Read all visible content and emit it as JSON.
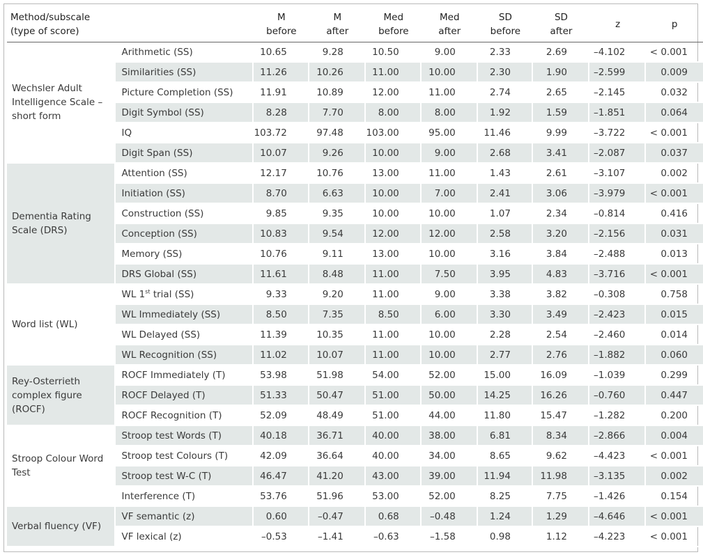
{
  "table": {
    "headers": [
      "Method/subscale\n(type of score)",
      "",
      "M\nbefore",
      "M\nafter",
      "Med\nbefore",
      "Med\nafter",
      "SD\nbefore",
      "SD\nafter",
      "z",
      "p"
    ],
    "groups": [
      {
        "name": "Wechsler Adult Intelligence Scale – short form",
        "shaded": false,
        "rows": [
          {
            "label": "Arithmetic (SS)",
            "values": [
              "10.65",
              "9.28",
              "10.50",
              "9.00",
              "2.33",
              "2.69",
              "–4.102",
              "< 0.001"
            ]
          },
          {
            "label": "Similarities (SS)",
            "values": [
              "11.26",
              "10.26",
              "11.00",
              "10.00",
              "2.30",
              "1.90",
              "–2.599",
              "0.009"
            ]
          },
          {
            "label": "Picture Completion (SS)",
            "values": [
              "11.91",
              "10.89",
              "12.00",
              "11.00",
              "2.74",
              "2.65",
              "–2.145",
              "0.032"
            ]
          },
          {
            "label": "Digit Symbol (SS)",
            "values": [
              "8.28",
              "7.70",
              "8.00",
              "8.00",
              "1.92",
              "1.59",
              "–1.851",
              "0.064"
            ]
          },
          {
            "label": "IQ",
            "values": [
              "103.72",
              "97.48",
              "103.00",
              "95.00",
              "11.46",
              "9.99",
              "–3.722",
              "< 0.001"
            ]
          },
          {
            "label": "Digit Span (SS)",
            "values": [
              "10.07",
              "9.26",
              "10.00",
              "9.00",
              "2.68",
              "3.41",
              "–2.087",
              "0.037"
            ]
          }
        ]
      },
      {
        "name": "Dementia Rating Scale (DRS)",
        "shaded": true,
        "rows": [
          {
            "label": "Attention (SS)",
            "values": [
              "12.17",
              "10.76",
              "13.00",
              "11.00",
              "1.43",
              "2.61",
              "–3.107",
              "0.002"
            ]
          },
          {
            "label": "Initiation (SS)",
            "values": [
              "8.70",
              "6.63",
              "10.00",
              "7.00",
              "2.41",
              "3.06",
              "–3.979",
              "< 0.001"
            ]
          },
          {
            "label": "Construction (SS)",
            "values": [
              "9.85",
              "9.35",
              "10.00",
              "10.00",
              "1.07",
              "2.34",
              "–0.814",
              "0.416"
            ]
          },
          {
            "label": "Conception (SS)",
            "values": [
              "10.83",
              "9.54",
              "12.00",
              "12.00",
              "2.58",
              "3.20",
              "–2.156",
              "0.031"
            ]
          },
          {
            "label": "Memory (SS)",
            "values": [
              "10.76",
              "9.11",
              "13.00",
              "10.00",
              "3.16",
              "3.84",
              "–2.488",
              "0.013"
            ]
          },
          {
            "label": "DRS Global (SS)",
            "values": [
              "11.61",
              "8.48",
              "11.00",
              "7.50",
              "3.95",
              "4.83",
              "–3.716",
              "< 0.001"
            ]
          }
        ]
      },
      {
        "name": "Word list (WL)",
        "shaded": false,
        "rows": [
          {
            "label": "WL 1st trial (SS)",
            "values": [
              "9.33",
              "9.20",
              "11.00",
              "9.00",
              "3.38",
              "3.82",
              "–0.308",
              "0.758"
            ]
          },
          {
            "label": "WL Immediately (SS)",
            "values": [
              "8.50",
              "7.35",
              "8.50",
              "6.00",
              "3.30",
              "3.49",
              "–2.423",
              "0.015"
            ]
          },
          {
            "label": "WL Delayed (SS)",
            "values": [
              "11.39",
              "10.35",
              "11.00",
              "10.00",
              "2.28",
              "2.54",
              "–2.460",
              "0.014"
            ]
          },
          {
            "label": "WL Recognition (SS)",
            "values": [
              "11.02",
              "10.07",
              "11.00",
              "10.00",
              "2.77",
              "2.76",
              "–1.882",
              "0.060"
            ]
          }
        ]
      },
      {
        "name": "Rey-Osterrieth complex figure (ROCF)",
        "shaded": true,
        "rows": [
          {
            "label": "ROCF Immediately (T)",
            "values": [
              "53.98",
              "51.98",
              "54.00",
              "52.00",
              "15.00",
              "16.09",
              "–1.039",
              "0.299"
            ]
          },
          {
            "label": "ROCF Delayed (T)",
            "values": [
              "51.33",
              "50.47",
              "51.00",
              "50.00",
              "14.25",
              "16.26",
              "–0.760",
              "0.447"
            ]
          },
          {
            "label": "ROCF Recognition (T)",
            "values": [
              "52.09",
              "48.49",
              "51.00",
              "44.00",
              "11.80",
              "15.47",
              "–1.282",
              "0.200"
            ]
          }
        ]
      },
      {
        "name": "Stroop Colour Word Test",
        "shaded": false,
        "rows": [
          {
            "label": "Stroop test Words (T)",
            "values": [
              "40.18",
              "36.71",
              "40.00",
              "38.00",
              "6.81",
              "8.34",
              "–2.866",
              "0.004"
            ]
          },
          {
            "label": "Stroop test Colours (T)",
            "values": [
              "42.09",
              "36.64",
              "40.00",
              "34.00",
              "8.65",
              "9.62",
              "–4.423",
              "< 0.001"
            ]
          },
          {
            "label": "Stroop test W-C (T)",
            "values": [
              "46.47",
              "41.20",
              "43.00",
              "39.00",
              "11.94",
              "11.98",
              "–3.135",
              "0.002"
            ]
          },
          {
            "label": "Interference (T)",
            "values": [
              "53.76",
              "51.96",
              "53.00",
              "52.00",
              "8.25",
              "7.75",
              "–1.426",
              "0.154"
            ]
          }
        ]
      },
      {
        "name": "Verbal fluency (VF)",
        "shaded": true,
        "rows": [
          {
            "label": "VF semantic (z)",
            "values": [
              "0.60",
              "–0.47",
              "0.68",
              "–0.48",
              "1.24",
              "1.29",
              "–4.646",
              "< 0.001"
            ]
          },
          {
            "label": "VF lexical (z)",
            "values": [
              "–0.53",
              "–1.41",
              "–0.63",
              "–1.58",
              "0.98",
              "1.12",
              "–4.223",
              "< 0.001"
            ]
          }
        ]
      }
    ]
  }
}
